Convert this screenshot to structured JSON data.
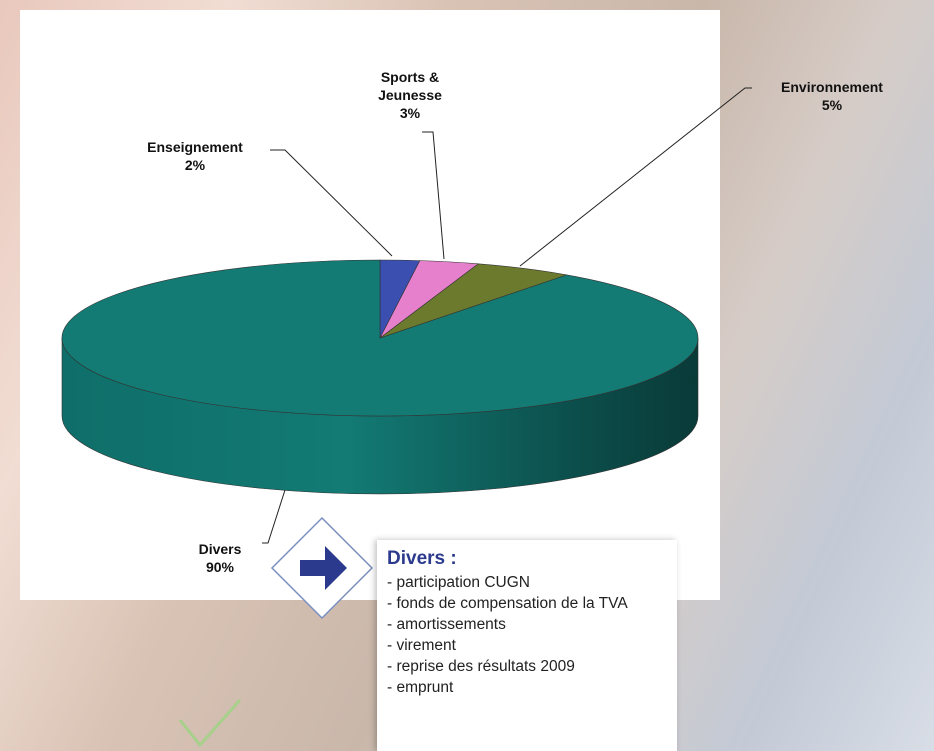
{
  "chart_data": {
    "type": "pie",
    "categories": [
      "Enseignement",
      "Sports & Jeunesse",
      "Environnement",
      "Divers"
    ],
    "values": [
      2,
      3,
      5,
      90
    ],
    "value_labels": [
      "2%",
      "3%",
      "5%",
      "90%"
    ],
    "colors": [
      "#3a4fb0",
      "#e680cc",
      "#6b7a2c",
      "#137a74"
    ]
  },
  "info_box": {
    "title": "Divers :",
    "items": [
      "- participation CUGN",
      "- fonds de compensation de la TVA",
      "- amortissements",
      "- virement",
      "- reprise des résultats 2009",
      "- emprunt"
    ]
  }
}
